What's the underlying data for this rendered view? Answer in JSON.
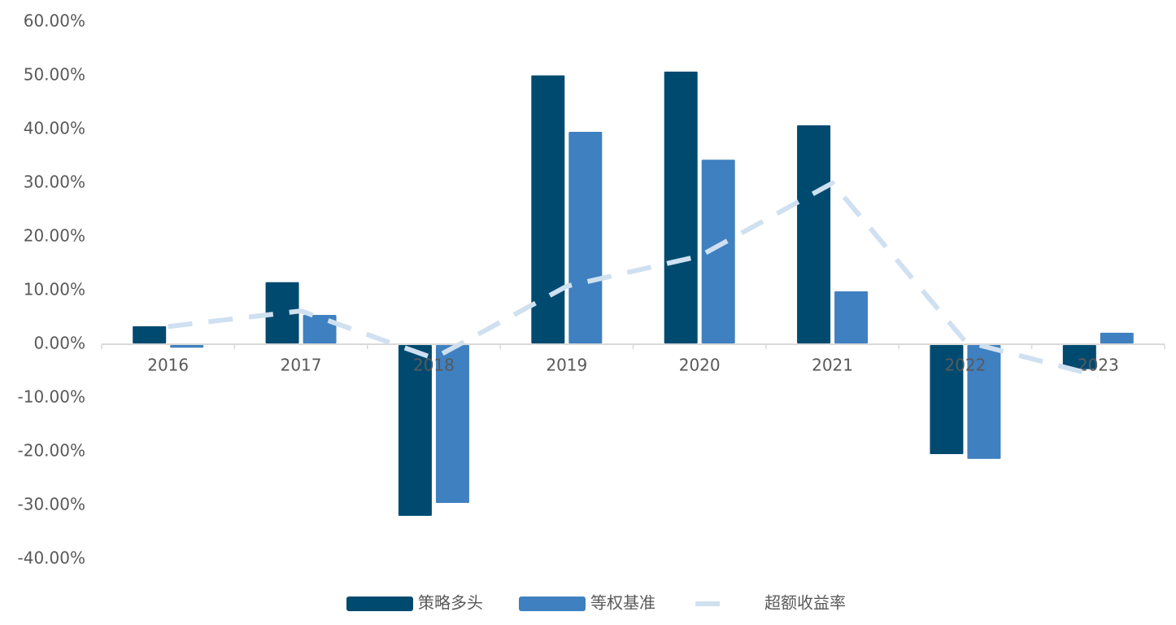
{
  "chart_data": {
    "type": "bar_line",
    "categories": [
      "2016",
      "2017",
      "2018",
      "2019",
      "2020",
      "2021",
      "2022",
      "2023"
    ],
    "series": [
      {
        "name": "策略多头",
        "color": "#004a70",
        "type": "bar",
        "values": [
          3.5,
          11.7,
          -32.1,
          50.2,
          50.9,
          40.9,
          -20.6,
          -4.8
        ]
      },
      {
        "name": "等权基准",
        "color": "#3f80c0",
        "type": "bar",
        "values": [
          -0.8,
          5.6,
          -29.7,
          39.7,
          34.5,
          10.0,
          -21.5,
          2.3
        ]
      },
      {
        "name": "超额收益率",
        "color": "#cfe0f0",
        "type": "line",
        "dashed": true,
        "values": [
          3.3,
          6.2,
          -2.6,
          10.8,
          16.4,
          30.0,
          0.5,
          -5.9
        ]
      }
    ],
    "ylim": [
      -40,
      60
    ],
    "yticks": [
      {
        "value": -40,
        "label": "-40.00%"
      },
      {
        "value": -30,
        "label": "-30.00%"
      },
      {
        "value": -20,
        "label": "-20.00%"
      },
      {
        "value": -10,
        "label": "-10.00%"
      },
      {
        "value": 0,
        "label": "0.00%"
      },
      {
        "value": 10,
        "label": "10.00%"
      },
      {
        "value": 20,
        "label": "20.00%"
      },
      {
        "value": 30,
        "label": "30.00%"
      },
      {
        "value": 40,
        "label": "40.00%"
      },
      {
        "value": 50,
        "label": "50.00%"
      },
      {
        "value": 60,
        "label": "60.00%"
      }
    ],
    "grid": false,
    "legend": "bottom"
  }
}
